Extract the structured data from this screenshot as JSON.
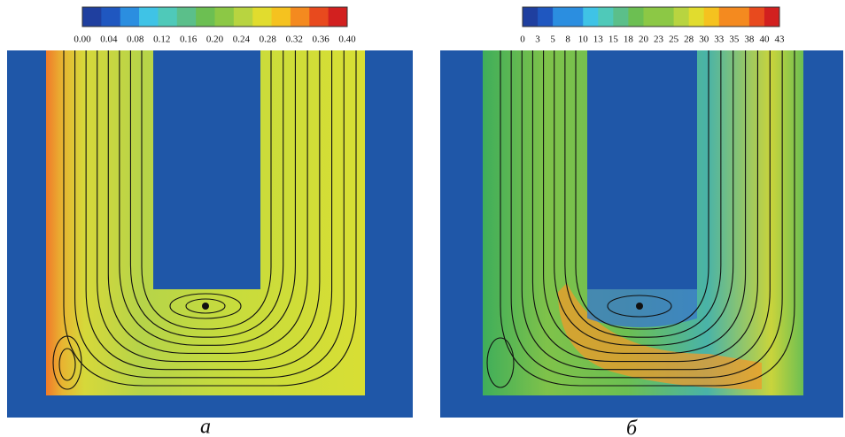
{
  "panels": [
    {
      "colorbar": {
        "ticks": [
          "0.00",
          "0.04",
          "0.08",
          "0.12",
          "0.16",
          "0.20",
          "0.24",
          "0.28",
          "0.32",
          "0.36",
          "0.40"
        ]
      },
      "label": "а"
    },
    {
      "colorbar": {
        "ticks": [
          "0",
          "3",
          "5",
          "8",
          "10",
          "13",
          "15",
          "18",
          "20",
          "23",
          "25",
          "28",
          "30",
          "33",
          "35",
          "38",
          "40",
          "43"
        ]
      },
      "label": "б"
    }
  ]
}
